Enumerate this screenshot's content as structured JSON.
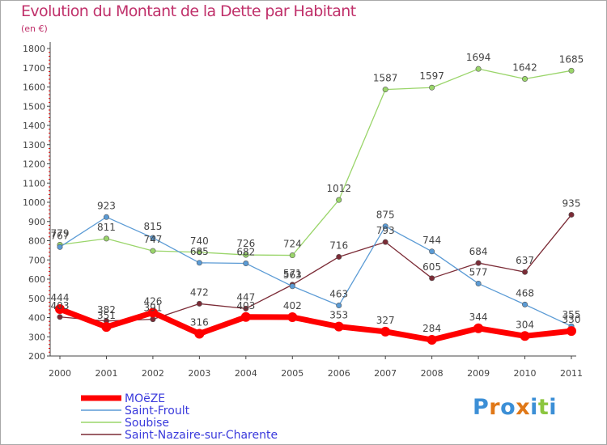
{
  "chart_data": {
    "type": "line",
    "title": "Evolution du Montant de la Dette par Habitant",
    "subtitle": "(en €)",
    "x": [
      "2000",
      "2001",
      "2002",
      "2003",
      "2004",
      "2005",
      "2006",
      "2007",
      "2008",
      "2009",
      "2010",
      "2011"
    ],
    "ylim": [
      200,
      1800
    ],
    "yticks": [
      200,
      300,
      400,
      500,
      600,
      700,
      800,
      900,
      1000,
      1100,
      1200,
      1300,
      1400,
      1500,
      1600,
      1700,
      1800
    ],
    "grid": false,
    "legend_position": "bottom-left",
    "series": [
      {
        "name": "MOëZE",
        "color": "#ff0000",
        "values": [
          444,
          351,
          426,
          316,
          403,
          402,
          353,
          327,
          284,
          344,
          304,
          330
        ]
      },
      {
        "name": "Saint-Froult",
        "color": "#5b9bd5",
        "values": [
          767,
          923,
          815,
          685,
          682,
          563,
          463,
          875,
          744,
          577,
          468,
          355
        ]
      },
      {
        "name": "Soubise",
        "color": "#9ad56a",
        "values": [
          779,
          811,
          747,
          740,
          726,
          724,
          1012,
          1587,
          1597,
          1694,
          1642,
          1685
        ]
      },
      {
        "name": "Saint-Nazaire-sur-Charente",
        "color": "#7b2b36",
        "values": [
          403,
          382,
          391,
          472,
          447,
          571,
          716,
          793,
          605,
          684,
          637,
          935
        ]
      }
    ]
  },
  "logo": {
    "text": "Proxiti",
    "letter_colors": [
      "#3c8fd6",
      "#e07818",
      "#3c8fd6",
      "#e07818",
      "#3c8fd6",
      "#8cc63f",
      "#3c8fd6"
    ]
  }
}
